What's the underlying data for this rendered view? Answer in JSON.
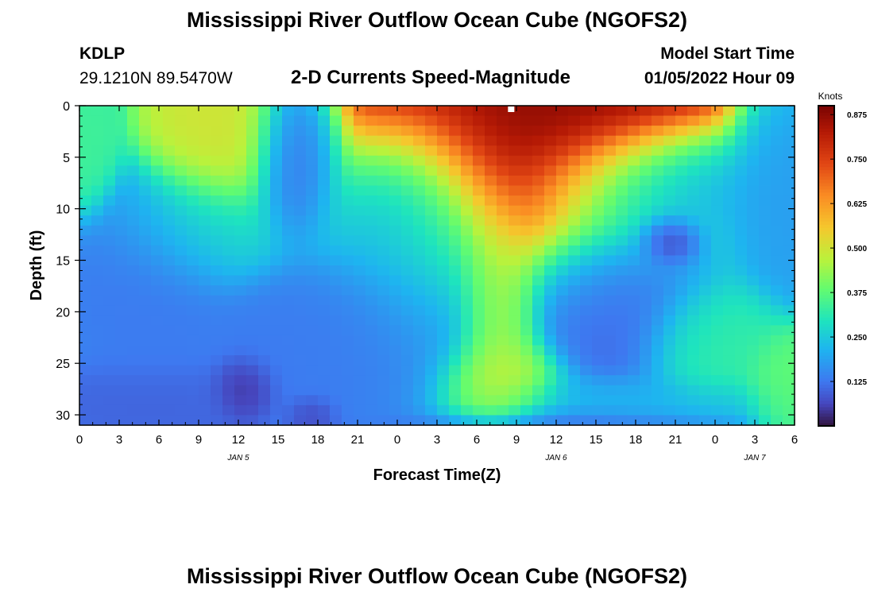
{
  "titles": {
    "main": "Mississippi River Outflow Ocean Cube (NGOFS2)",
    "repeat": "Mississippi River Outflow Ocean Cube (NGOFS2)"
  },
  "station": {
    "id": "KDLP",
    "coords": "29.1210N  89.5470W"
  },
  "model": {
    "label": "Model Start Time",
    "value": "01/05/2022 Hour 09"
  },
  "chart_data": {
    "type": "heatmap",
    "title": "2-D Currents Speed-Magnitude",
    "xlabel": "Forecast Time(Z)",
    "ylabel": "Depth (ft)",
    "x_tick_labels": [
      "0",
      "3",
      "6",
      "9",
      "12",
      "15",
      "18",
      "21",
      "0",
      "3",
      "6",
      "9",
      "12",
      "15",
      "18",
      "21",
      "0",
      "3",
      "6"
    ],
    "day_labels": [
      {
        "text": "JAN 5",
        "x_hours": 12
      },
      {
        "text": "JAN 6",
        "x_hours": 36
      },
      {
        "text": "JAN 7",
        "x_hours": 51
      }
    ],
    "xlim_hours": [
      0,
      54
    ],
    "y_ticks": [
      0,
      5,
      10,
      15,
      20,
      25,
      30
    ],
    "ylim": [
      0,
      31
    ],
    "y_inverted": true,
    "colorbar": {
      "title": "Knots",
      "ticks": [
        "0.875",
        "0.750",
        "0.625",
        "0.500",
        "0.375",
        "0.250",
        "0.125"
      ],
      "tick_values": [
        0.875,
        0.75,
        0.625,
        0.5,
        0.375,
        0.25,
        0.125
      ],
      "range": [
        0,
        0.9
      ]
    },
    "field_features": [
      {
        "hour": 0.5,
        "depth": 4,
        "speed": 0.34,
        "sx": 1.2,
        "sy": 3
      },
      {
        "hour": 10.5,
        "depth": 3,
        "speed": 0.5,
        "sx": 2.5,
        "sy": 4
      },
      {
        "hour": 16.5,
        "depth": 5,
        "speed": 0.1,
        "sx": 1.8,
        "sy": 4
      },
      {
        "hour": 5.5,
        "depth": 18,
        "speed": 0.13,
        "sx": 3,
        "sy": 5
      },
      {
        "hour": 12.5,
        "depth": 27.5,
        "speed": 0.02,
        "sx": 1.2,
        "sy": 1.6
      },
      {
        "hour": 6,
        "depth": 29,
        "speed": 0.1,
        "sx": 4,
        "sy": 2
      },
      {
        "hour": 17.5,
        "depth": 30,
        "speed": 0.06,
        "sx": 1,
        "sy": 1
      },
      {
        "hour": 17,
        "depth": 24,
        "speed": 0.13,
        "sx": 4,
        "sy": 4
      },
      {
        "hour": 9,
        "depth": 12,
        "speed": 0.27,
        "sx": 3,
        "sy": 3
      },
      {
        "hour": 24,
        "depth": 10,
        "speed": 0.17,
        "sx": 3,
        "sy": 4
      },
      {
        "hour": 24,
        "depth": 22,
        "speed": 0.14,
        "sx": 4,
        "sy": 5
      },
      {
        "hour": 33.5,
        "depth": 3,
        "speed": 0.88,
        "sx": 7,
        "sy": 7
      },
      {
        "hour": 31.5,
        "depth": 20,
        "speed": 0.5,
        "sx": 1.6,
        "sy": 6
      },
      {
        "hour": 31.5,
        "depth": 27,
        "speed": 0.5,
        "sx": 2.5,
        "sy": 2.5
      },
      {
        "hour": 40,
        "depth": 18,
        "speed": 0.1,
        "sx": 4,
        "sy": 5
      },
      {
        "hour": 44.5,
        "depth": 13,
        "speed": 0.0,
        "sx": 1.2,
        "sy": 1.3
      },
      {
        "hour": 44,
        "depth": 8,
        "speed": 0.17,
        "sx": 5,
        "sy": 3
      },
      {
        "hour": 47.5,
        "depth": 23,
        "speed": 0.33,
        "sx": 2.5,
        "sy": 3
      },
      {
        "hour": 53.5,
        "depth": 27,
        "speed": 0.38,
        "sx": 1.5,
        "sy": 2.5
      },
      {
        "hour": 53,
        "depth": 8,
        "speed": 0.18,
        "sx": 2,
        "sy": 5
      },
      {
        "hour": 40,
        "depth": 29,
        "speed": 0.22,
        "sx": 6,
        "sy": 1.5
      },
      {
        "hour": 36,
        "depth": 30.5,
        "speed": 0.1,
        "sx": 6,
        "sy": 0.6
      },
      {
        "hour": 27,
        "depth": 14,
        "speed": 0.27,
        "sx": 3,
        "sy": 6
      }
    ],
    "field_background": 0.24
  }
}
